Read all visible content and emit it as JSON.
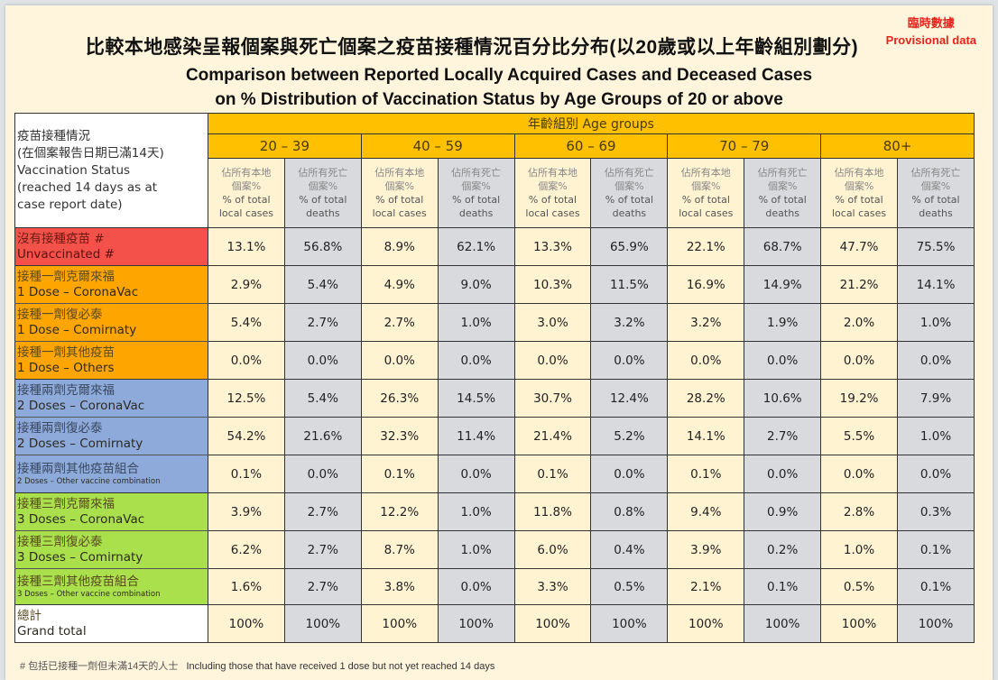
{
  "provisional": {
    "zh": "臨時數據",
    "en": "Provisional data"
  },
  "title": {
    "zh": "比較本地感染呈報個案與死亡個案之疫苗接種情況百分比分布(以20歲或以上年齡組別劃分)",
    "en_line1": "Comparison between Reported Locally Acquired Cases and Deceased Cases",
    "en_line2": "on % Distribution of Vaccination Status by Age Groups of 20 or above"
  },
  "table": {
    "corner": {
      "zh1": "疫苗接種情況",
      "zh2": "(在個案報告日期已滿14天)",
      "en1": "Vaccination Status",
      "en2": "(reached 14 days as at",
      "en3": "case report date)"
    },
    "age_groups_label": "年齡組別 Age groups",
    "age_groups": [
      "20 – 39",
      "40 – 59",
      "60 – 69",
      "70 – 79",
      "80+"
    ],
    "sub_headers": {
      "cases": {
        "zh1": "佔所有本地",
        "zh2": "個案%",
        "en1": "% of total",
        "en2": "local cases"
      },
      "deaths": {
        "zh1": "佔所有死亡",
        "zh2": "個案%",
        "en1": "% of total",
        "en2": "deaths"
      }
    },
    "rows": [
      {
        "zh": "沒有接種疫苗 #",
        "en": "Unvaccinated #",
        "color": "#f5514b",
        "values": [
          "13.1%",
          "56.8%",
          "8.9%",
          "62.1%",
          "13.3%",
          "65.9%",
          "22.1%",
          "68.7%",
          "47.7%",
          "75.5%"
        ]
      },
      {
        "zh": "接種一劑克爾來福",
        "en": "1 Dose – CoronaVac",
        "color": "#ffa500",
        "values": [
          "2.9%",
          "5.4%",
          "4.9%",
          "9.0%",
          "10.3%",
          "11.5%",
          "16.9%",
          "14.9%",
          "21.2%",
          "14.1%"
        ]
      },
      {
        "zh": "接種一劑復必泰",
        "en": "1 Dose – Comirnaty",
        "color": "#ffa500",
        "values": [
          "5.4%",
          "2.7%",
          "2.7%",
          "1.0%",
          "3.0%",
          "3.2%",
          "3.2%",
          "1.9%",
          "2.0%",
          "1.0%"
        ]
      },
      {
        "zh": "接種一劑其他疫苗",
        "en": "1 Dose – Others",
        "color": "#ffa500",
        "values": [
          "0.0%",
          "0.0%",
          "0.0%",
          "0.0%",
          "0.0%",
          "0.0%",
          "0.0%",
          "0.0%",
          "0.0%",
          "0.0%"
        ]
      },
      {
        "zh": "接種兩劑克爾來福",
        "en": "2 Doses – CoronaVac",
        "color": "#8eaadb",
        "values": [
          "12.5%",
          "5.4%",
          "26.3%",
          "14.5%",
          "30.7%",
          "12.4%",
          "28.2%",
          "10.6%",
          "19.2%",
          "7.9%"
        ]
      },
      {
        "zh": "接種兩劑復必泰",
        "en": "2 Doses – Comirnaty",
        "color": "#8eaadb",
        "values": [
          "54.2%",
          "21.6%",
          "32.3%",
          "11.4%",
          "21.4%",
          "5.2%",
          "14.1%",
          "2.7%",
          "5.5%",
          "1.0%"
        ]
      },
      {
        "zh": "接種兩劑其他疫苗組合",
        "en": "2 Doses – Other vaccine combination",
        "color": "#8eaadb",
        "values": [
          "0.1%",
          "0.0%",
          "0.1%",
          "0.0%",
          "0.1%",
          "0.0%",
          "0.1%",
          "0.0%",
          "0.0%",
          "0.0%"
        ]
      },
      {
        "zh": "接種三劑克爾來福",
        "en": "3 Doses – CoronaVac",
        "color": "#a9e04b",
        "values": [
          "3.9%",
          "2.7%",
          "12.2%",
          "1.0%",
          "11.8%",
          "0.8%",
          "9.4%",
          "0.9%",
          "2.8%",
          "0.3%"
        ]
      },
      {
        "zh": "接種三劑復必泰",
        "en": "3 Doses – Comirnaty",
        "color": "#a9e04b",
        "values": [
          "6.2%",
          "2.7%",
          "8.7%",
          "1.0%",
          "6.0%",
          "0.4%",
          "3.9%",
          "0.2%",
          "1.0%",
          "0.1%"
        ]
      },
      {
        "zh": "接種三劑其他疫苗組合",
        "en": "3 Doses – Other vaccine combination",
        "color": "#a9e04b",
        "values": [
          "1.6%",
          "2.7%",
          "3.8%",
          "0.0%",
          "3.3%",
          "0.5%",
          "2.1%",
          "0.1%",
          "0.5%",
          "0.1%"
        ]
      },
      {
        "zh": "總計",
        "en": "Grand total",
        "color": "#ffffff",
        "values": [
          "100%",
          "100%",
          "100%",
          "100%",
          "100%",
          "100%",
          "100%",
          "100%",
          "100%",
          "100%"
        ]
      }
    ]
  },
  "footnote": {
    "zh": "# 包括已接種一劑但未滿14天的人士",
    "en": "Including those that have received 1 dose but not yet reached 14 days"
  }
}
